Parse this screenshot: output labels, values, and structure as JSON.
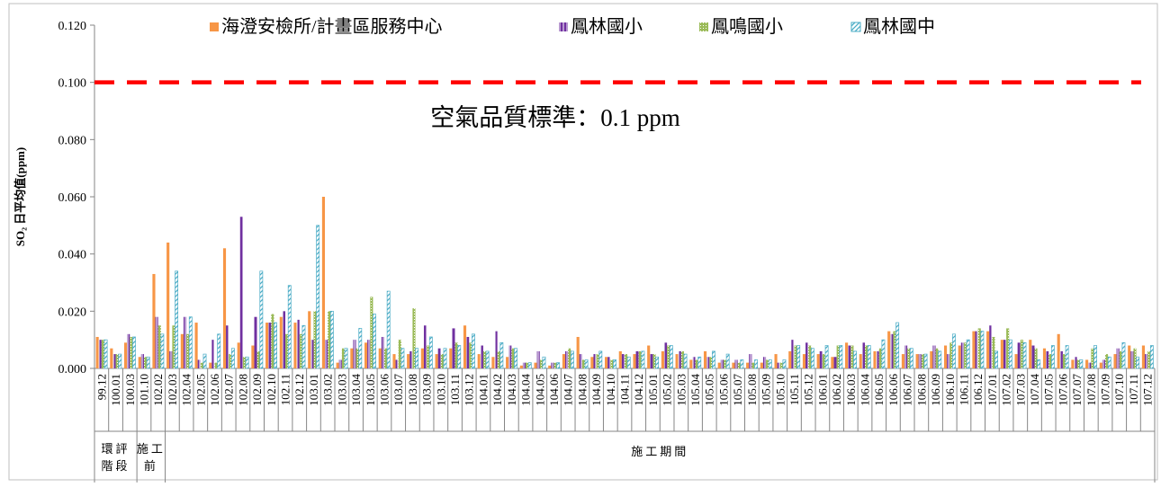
{
  "chart_data": {
    "type": "bar",
    "title": "",
    "ylabel": "SO₂ 日平均值(ppm)",
    "xlabel": "",
    "ylim": [
      0,
      0.12
    ],
    "yticks": [
      "0.000",
      "0.020",
      "0.040",
      "0.060",
      "0.080",
      "0.100",
      "0.120"
    ],
    "standard": {
      "value": 0.1,
      "label": "空氣品質標準：0.1 ppm",
      "color": "#ff0000"
    },
    "legend_position": "top",
    "categories": [
      "99.12",
      "100.01",
      "100.03",
      "101.10",
      "102.02",
      "102.03",
      "102.04",
      "102.05",
      "102.06",
      "102.07",
      "102.08",
      "102.09",
      "102.10",
      "102.11",
      "102.12",
      "103.01",
      "103.02",
      "103.03",
      "103.04",
      "103.05",
      "103.06",
      "103.07",
      "103.08",
      "103.09",
      "103.10",
      "103.11",
      "103.12",
      "104.01",
      "104.02",
      "104.03",
      "104.04",
      "104.05",
      "104.06",
      "104.07",
      "104.08",
      "104.09",
      "104.10",
      "104.11",
      "104.12",
      "105.01",
      "105.02",
      "105.03",
      "105.04",
      "105.05",
      "105.06",
      "105.07",
      "105.08",
      "105.09",
      "105.10",
      "105.11",
      "105.12",
      "106.01",
      "106.02",
      "106.03",
      "106.04",
      "106.05",
      "106.06",
      "106.07",
      "106.08",
      "106.09",
      "106.10",
      "106.11",
      "106.12",
      "107.01",
      "107.02",
      "107.03",
      "107.04",
      "107.05",
      "107.06",
      "107.07",
      "107.08",
      "107.09",
      "107.10",
      "107.11",
      "107.12"
    ],
    "phases": [
      {
        "label": "環評階段",
        "lines": [
          "環評",
          "階段"
        ],
        "start": 0,
        "end": 2
      },
      {
        "label": "施工前",
        "lines": [
          "施工",
          "前"
        ],
        "start": 3,
        "end": 4
      },
      {
        "label": "施工期間",
        "lines": [
          "施工期間"
        ],
        "start": 5,
        "end": 74
      }
    ],
    "series": [
      {
        "name": "海澄安檢所/計畫區服務中心",
        "color": "#f79646",
        "style": "solid",
        "values": [
          0.011,
          0.007,
          0.009,
          0.004,
          0.033,
          0.044,
          0.012,
          0.016,
          0.002,
          0.042,
          0.009,
          0.008,
          0.016,
          0.018,
          0.016,
          0.02,
          0.06,
          0.002,
          0.007,
          0.009,
          0.007,
          0.005,
          0.005,
          0.007,
          0.005,
          0.007,
          0.015,
          0.005,
          0.004,
          0.004,
          0.001,
          0.002,
          0.001,
          0.005,
          0.011,
          0.004,
          0.004,
          0.006,
          0.005,
          0.008,
          0.006,
          0.005,
          0.003,
          0.006,
          0.002,
          0.002,
          0.002,
          0.002,
          0.005,
          0.006,
          0.005,
          0.005,
          0.004,
          0.009,
          0.005,
          0.006,
          0.013,
          0.005,
          0.005,
          0.006,
          0.008,
          0.008,
          0.013,
          0.013,
          0.01,
          0.005,
          0.01,
          0.007,
          0.012,
          0.003,
          0.003,
          0.002,
          0.005,
          0.008,
          0.008
        ]
      },
      {
        "name": "鳳林國小",
        "color": "#7030a0",
        "style": "vstripe",
        "values": [
          0.01,
          0.005,
          0.012,
          0.005,
          0.018,
          0.006,
          0.018,
          0.003,
          0.01,
          0.015,
          0.053,
          0.018,
          0.016,
          0.02,
          0.017,
          0.01,
          0.01,
          0.003,
          0.01,
          0.01,
          0.011,
          0.003,
          0.006,
          0.015,
          0.007,
          0.014,
          0.011,
          0.008,
          0.013,
          0.008,
          0.002,
          0.006,
          0.002,
          0.006,
          0.005,
          0.005,
          0.004,
          0.005,
          0.006,
          0.005,
          0.009,
          0.006,
          0.004,
          0.004,
          0.003,
          0.003,
          0.005,
          0.004,
          0.002,
          0.01,
          0.009,
          0.006,
          0.004,
          0.008,
          0.009,
          0.006,
          0.012,
          0.008,
          0.005,
          0.008,
          0.005,
          0.009,
          0.013,
          0.015,
          0.01,
          0.009,
          0.008,
          0.006,
          0.006,
          0.004,
          0.002,
          0.003,
          0.007,
          0.006,
          0.005
        ]
      },
      {
        "name": "鳳鳴國小",
        "color": "#9bbb59",
        "style": "dotted",
        "values": [
          0.01,
          0.005,
          0.011,
          0.004,
          0.015,
          0.015,
          0.012,
          0.002,
          0.002,
          0.005,
          0.004,
          0.006,
          0.019,
          0.012,
          0.012,
          0.02,
          0.02,
          0.007,
          0.007,
          0.025,
          0.007,
          0.01,
          0.021,
          0.008,
          0.005,
          0.009,
          0.009,
          0.006,
          0.006,
          0.007,
          0.002,
          0.003,
          0.002,
          0.007,
          0.003,
          0.005,
          0.003,
          0.005,
          0.006,
          0.005,
          0.008,
          0.006,
          0.003,
          0.004,
          0.003,
          0.002,
          0.002,
          0.003,
          0.002,
          0.008,
          0.008,
          0.005,
          0.008,
          0.008,
          0.008,
          0.007,
          0.013,
          0.007,
          0.005,
          0.007,
          0.009,
          0.009,
          0.014,
          0.011,
          0.014,
          0.01,
          0.007,
          0.005,
          0.005,
          0.003,
          0.007,
          0.005,
          0.006,
          0.007,
          0.006
        ]
      },
      {
        "name": "鳳林國中",
        "color": "#4bacc6",
        "style": "hatch",
        "values": [
          0.01,
          0.005,
          0.011,
          0.004,
          0.012,
          0.034,
          0.018,
          0.005,
          0.012,
          0.007,
          0.004,
          0.034,
          0.016,
          0.029,
          0.015,
          0.05,
          0.02,
          0.007,
          0.014,
          0.019,
          0.027,
          0.007,
          0.007,
          0.011,
          0.007,
          0.008,
          0.012,
          0.006,
          0.009,
          0.007,
          0.002,
          0.004,
          0.002,
          0.006,
          0.003,
          0.006,
          0.003,
          0.004,
          0.006,
          0.004,
          0.008,
          0.005,
          0.004,
          0.006,
          0.005,
          0.003,
          0.003,
          0.003,
          0.003,
          0.008,
          0.007,
          0.008,
          0.008,
          0.006,
          0.008,
          0.01,
          0.016,
          0.007,
          0.005,
          0.006,
          0.012,
          0.01,
          0.013,
          0.006,
          0.01,
          0.009,
          0.003,
          0.008,
          0.008,
          0.003,
          0.008,
          0.004,
          0.009,
          0.004,
          0.008
        ]
      }
    ]
  }
}
